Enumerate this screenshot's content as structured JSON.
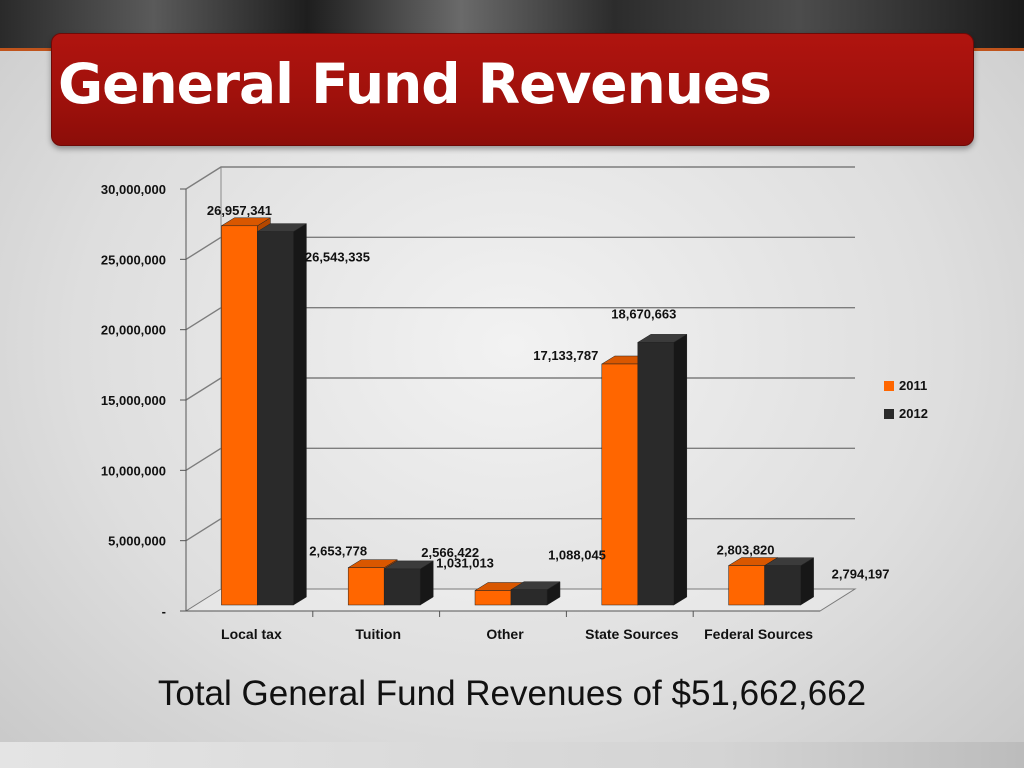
{
  "slide": {
    "title": "General Fund Revenues",
    "footer": "Total General Fund Revenues of $51,662,662"
  },
  "colors": {
    "title_bg": "#a5120d",
    "series_2011": "#ff6600",
    "series_2012": "#2a2a2a"
  },
  "chart_data": {
    "type": "bar",
    "title": "",
    "xlabel": "",
    "ylabel": "",
    "categories": [
      "Local tax",
      "Tuition",
      "Other",
      "State Sources",
      "Federal Sources"
    ],
    "series": [
      {
        "name": "2011",
        "values": [
          26957341,
          2653778,
          1031013,
          17133787,
          2803820
        ],
        "labels": [
          "26,957,341",
          "2,653,778",
          "1,031,013",
          "17,133,787",
          "2,803,820"
        ]
      },
      {
        "name": "2012",
        "values": [
          26543335,
          2566422,
          1088045,
          18670663,
          2794197
        ],
        "labels": [
          "26,543,335",
          "2,566,422",
          "1,088,045",
          "18,670,663",
          "2,794,197"
        ]
      }
    ],
    "ylim": [
      0,
      30000000
    ],
    "yticks": [
      0,
      5000000,
      10000000,
      15000000,
      20000000,
      25000000,
      30000000
    ],
    "ytick_labels": [
      "-",
      "5,000,000",
      "10,000,000",
      "15,000,000",
      "20,000,000",
      "25,000,000",
      "30,000,000"
    ],
    "grid": true,
    "legend_position": "right"
  }
}
